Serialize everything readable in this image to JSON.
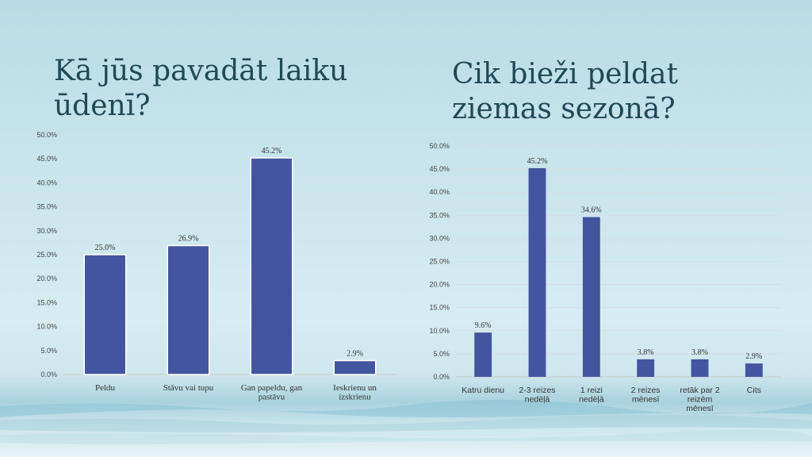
{
  "slide": {
    "title_left": "Kā jūs pavadāt laiku ūdenī?",
    "title_right": "Cik bieži peldat ziemas sezonā?"
  },
  "colors": {
    "bar": "#44559f",
    "title": "#1e4a57",
    "grid": "#d5dde2"
  },
  "chart_data": [
    {
      "type": "bar",
      "categories": [
        [
          "Peldu"
        ],
        [
          "Stāvu vai tupu"
        ],
        [
          "Gan papeldu, gan",
          "pastāvu"
        ],
        [
          "Ieskrienu un",
          "izskrienu"
        ]
      ],
      "values": [
        25.0,
        26.9,
        45.2,
        2.9
      ],
      "data_labels": [
        "25.0%",
        "26.9%",
        "45.2%",
        "2.9%"
      ],
      "ylim": [
        0,
        50
      ],
      "yticks": [
        "0.0%",
        "5.0%",
        "10.0%",
        "15.0%",
        "20.0%",
        "25.0%",
        "30.0%",
        "35.0%",
        "40.0%",
        "45.0%",
        "50.0%"
      ],
      "grid": false
    },
    {
      "type": "bar",
      "categories": [
        [
          "Katru dienu"
        ],
        [
          "2-3 reizes",
          "nedēļā"
        ],
        [
          "1 reizi",
          "nedēļā"
        ],
        [
          "2 reizes",
          "mēnesī"
        ],
        [
          "retāk par 2",
          "reizēm",
          "mēnesī"
        ],
        [
          "Cits"
        ]
      ],
      "values": [
        9.6,
        45.2,
        34.6,
        3.8,
        3.8,
        2.9
      ],
      "data_labels": [
        "9.6%",
        "45.2%",
        "34.6%",
        "3.8%",
        "3.8%",
        "2.9%"
      ],
      "ylim": [
        0,
        50
      ],
      "yticks": [
        "0.0%",
        "5.0%",
        "10.0%",
        "15.0%",
        "20.0%",
        "25.0%",
        "30.0%",
        "35.0%",
        "40.0%",
        "45.0%",
        "50.0%"
      ],
      "grid": true
    }
  ]
}
